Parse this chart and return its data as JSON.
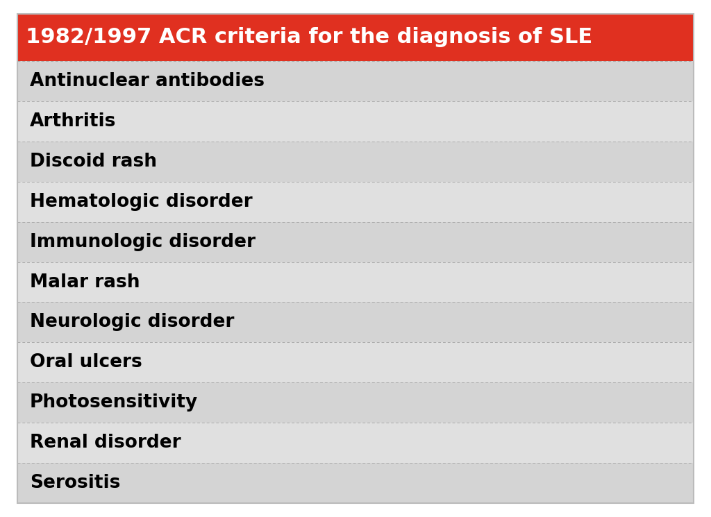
{
  "title": "1982/1997 ACR criteria for the diagnosis of SLE",
  "title_bg_color": "#E03020",
  "title_text_color": "#FFFFFF",
  "title_fontsize": 22,
  "criteria": [
    "Antinuclear antibodies",
    "Arthritis",
    "Discoid rash",
    "Hematologic disorder",
    "Immunologic disorder",
    "Malar rash",
    "Neurologic disorder",
    "Oral ulcers",
    "Photosensitivity",
    "Renal disorder",
    "Serositis"
  ],
  "row_colors": [
    "#D4D4D4",
    "#E0E0E0",
    "#D4D4D4",
    "#E0E0E0",
    "#D4D4D4",
    "#E0E0E0",
    "#D4D4D4",
    "#E0E0E0",
    "#D4D4D4",
    "#E0E0E0",
    "#D4D4D4"
  ],
  "text_color": "#000000",
  "text_fontsize": 19,
  "bg_color": "#FFFFFF",
  "border_color": "#AAAAAA",
  "outer_border_color": "#BBBBBB"
}
